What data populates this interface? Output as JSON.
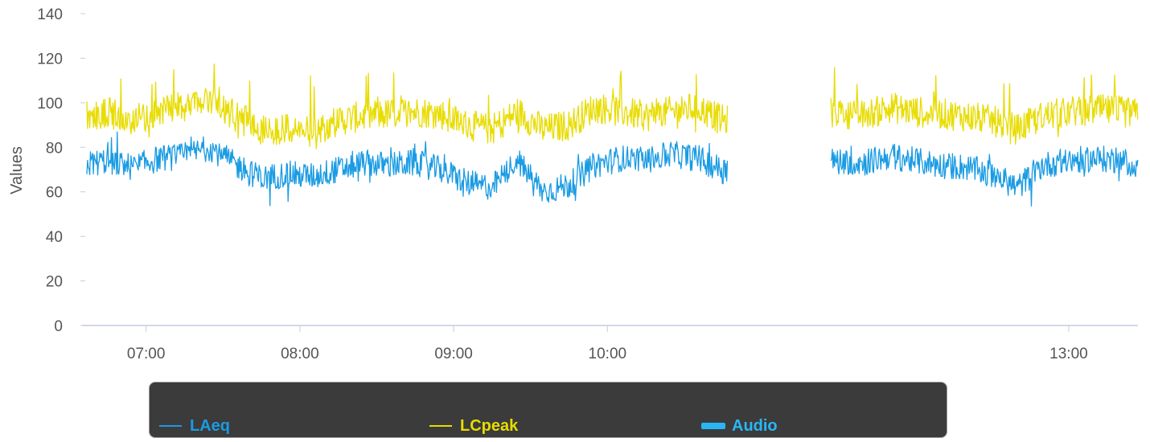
{
  "chart_data": {
    "type": "line",
    "ylabel": "Values",
    "ylim": [
      0,
      140
    ],
    "yticks": [
      "0",
      "20",
      "40",
      "60",
      "80",
      "100",
      "120",
      "140"
    ],
    "xlim": [
      "06:35",
      "13:27"
    ],
    "xticks": [
      "07:00",
      "08:00",
      "09:00",
      "10:00",
      "13:00"
    ],
    "gap": [
      "10:47",
      "11:27"
    ],
    "series": [
      {
        "name": "LAeq",
        "color": "#1a9be3",
        "x": [
          "06:35",
          "06:45",
          "06:55",
          "07:05",
          "07:15",
          "07:25",
          "07:35",
          "07:45",
          "07:55",
          "08:05",
          "08:15",
          "08:25",
          "08:35",
          "08:45",
          "08:55",
          "09:05",
          "09:15",
          "09:25",
          "09:35",
          "09:45",
          "09:55",
          "10:05",
          "10:15",
          "10:25",
          "10:35",
          "10:45",
          "11:30",
          "11:40",
          "11:50",
          "12:00",
          "12:10",
          "12:20",
          "12:30",
          "12:40",
          "12:50",
          "13:00",
          "13:10",
          "13:20",
          "13:27"
        ],
        "values": [
          72,
          74,
          71,
          75,
          76,
          80,
          72,
          66,
          68,
          67,
          70,
          73,
          72,
          73,
          70,
          64,
          62,
          74,
          60,
          63,
          72,
          75,
          74,
          77,
          75,
          70,
          74,
          73,
          76,
          74,
          72,
          71,
          68,
          62,
          72,
          74,
          75,
          74,
          72
        ]
      },
      {
        "name": "LCpeak",
        "color": "#e8dc00",
        "x": [
          "06:35",
          "06:45",
          "06:55",
          "07:05",
          "07:15",
          "07:25",
          "07:35",
          "07:45",
          "07:55",
          "08:05",
          "08:15",
          "08:25",
          "08:35",
          "08:45",
          "08:55",
          "09:05",
          "09:15",
          "09:25",
          "09:35",
          "09:45",
          "09:55",
          "10:05",
          "10:15",
          "10:25",
          "10:35",
          "10:45",
          "11:30",
          "11:40",
          "11:50",
          "12:00",
          "12:10",
          "12:20",
          "12:30",
          "12:40",
          "12:50",
          "13:00",
          "13:10",
          "13:20",
          "13:27"
        ],
        "values": [
          94,
          96,
          92,
          96,
          98,
          100,
          94,
          88,
          88,
          87,
          92,
          94,
          95,
          96,
          95,
          90,
          88,
          96,
          88,
          90,
          98,
          96,
          94,
          96,
          98,
          92,
          96,
          94,
          98,
          96,
          95,
          94,
          92,
          88,
          94,
          96,
          97,
          96,
          95
        ]
      }
    ],
    "legend": [
      {
        "name": "LAeq",
        "symbol": "line",
        "color": "#1a9be3"
      },
      {
        "name": "LCpeak",
        "symbol": "line",
        "color": "#e8dc00"
      },
      {
        "name": "Audio",
        "symbol": "bar",
        "color": "#29b6f6"
      }
    ],
    "legend_background": "#3b3b3b",
    "grid": false
  }
}
